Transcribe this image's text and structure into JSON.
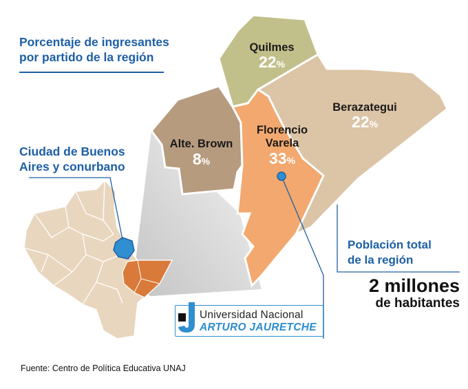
{
  "title": {
    "line1": "Porcentaje de ingresantes",
    "line2": "por partido de la región"
  },
  "inset_label": {
    "line1": "Ciudad de Buenos",
    "line2": "Aires y conurbano"
  },
  "regions": [
    {
      "id": "quilmes",
      "name_lines": [
        "Quilmes"
      ],
      "percent": "22",
      "percent_sign": "%",
      "color": "#c2c08a"
    },
    {
      "id": "berazategui",
      "name_lines": [
        "Berazategui"
      ],
      "percent": "22",
      "percent_sign": "%",
      "color": "#dcc4a6"
    },
    {
      "id": "alte-brown",
      "name_lines": [
        "Alte. Brown"
      ],
      "percent": "8",
      "percent_sign": "%",
      "color": "#b69b7f"
    },
    {
      "id": "florencio-varela",
      "name_lines": [
        "Florencio",
        "Varela"
      ],
      "percent": "33",
      "percent_sign": "%",
      "color": "#f2a86e"
    }
  ],
  "population": {
    "label_line1": "Población total",
    "label_line2": "de la región",
    "value_line1": "2 millones",
    "value_line2": "de habitantes"
  },
  "logo": {
    "line1": "Universidad Nacional",
    "line2": "ARTURO JAURETCHE"
  },
  "source": "Fuente: Centro de Política Educativa UNAJ",
  "colors": {
    "accent_blue": "#1d5fa5",
    "highlight_orange": "#d97a3a",
    "inset_fill": "#e9d6bf",
    "caba_blue": "#2f8fd0",
    "zoom_gray": "#c9c9c9"
  }
}
